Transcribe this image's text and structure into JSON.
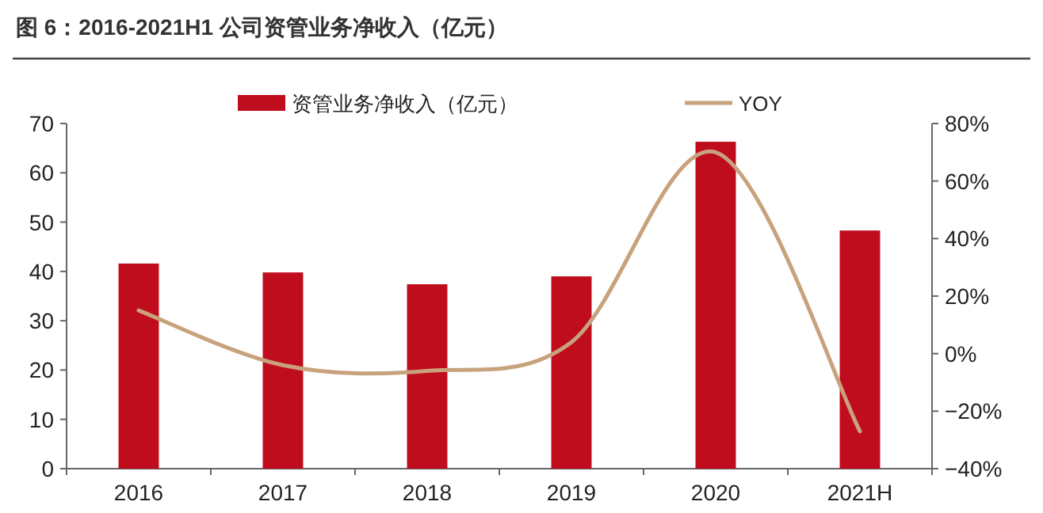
{
  "chart_data": {
    "type": "bar",
    "title": "图 6：2016-2021H1 公司资管业务净收入（亿元）",
    "categories": [
      "2016",
      "2017",
      "2018",
      "2019",
      "2020",
      "2021H"
    ],
    "series": [
      {
        "name": "资管业务净收入（亿元）",
        "color": "#c00d1e",
        "values": [
          41.6,
          39.8,
          37.4,
          39.0,
          66.3,
          48.3
        ]
      },
      {
        "name": "YOY",
        "type": "line",
        "axis": "y2",
        "color": "#c8a27c",
        "values": [
          15,
          -4,
          -6,
          4,
          70,
          -27
        ]
      }
    ],
    "ylim": [
      0,
      70
    ],
    "yticks": [
      0,
      10,
      20,
      30,
      40,
      50,
      60,
      70
    ],
    "y2lim": [
      -40,
      80
    ],
    "y2ticks": [
      {
        "value": -40,
        "label": "−40%"
      },
      {
        "value": -20,
        "label": "−20%"
      },
      {
        "value": 0,
        "label": "0%"
      },
      {
        "value": 20,
        "label": "20%"
      },
      {
        "value": 40,
        "label": "40%"
      },
      {
        "value": 60,
        "label": "60%"
      },
      {
        "value": 80,
        "label": "80%"
      }
    ],
    "grid": false,
    "legend": "top",
    "marker": "none"
  }
}
